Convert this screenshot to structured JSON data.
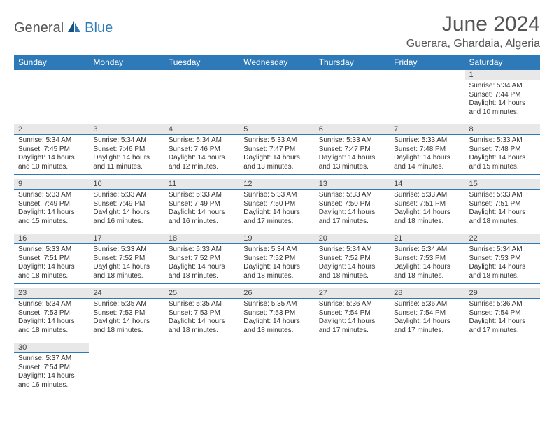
{
  "logo": {
    "part1": "General",
    "part2": "Blue"
  },
  "title": "June 2024",
  "location": "Guerara, Ghardaia, Algeria",
  "colors": {
    "header_bg": "#2e79b8",
    "header_text": "#ffffff",
    "daynum_bg": "#e8e8e8",
    "cell_border": "#2e79b8",
    "text": "#333333",
    "title_text": "#555555"
  },
  "day_headers": [
    "Sunday",
    "Monday",
    "Tuesday",
    "Wednesday",
    "Thursday",
    "Friday",
    "Saturday"
  ],
  "weeks": [
    [
      null,
      null,
      null,
      null,
      null,
      null,
      {
        "n": "1",
        "sunrise": "Sunrise: 5:34 AM",
        "sunset": "Sunset: 7:44 PM",
        "daylight": "Daylight: 14 hours and 10 minutes."
      }
    ],
    [
      {
        "n": "2",
        "sunrise": "Sunrise: 5:34 AM",
        "sunset": "Sunset: 7:45 PM",
        "daylight": "Daylight: 14 hours and 10 minutes."
      },
      {
        "n": "3",
        "sunrise": "Sunrise: 5:34 AM",
        "sunset": "Sunset: 7:46 PM",
        "daylight": "Daylight: 14 hours and 11 minutes."
      },
      {
        "n": "4",
        "sunrise": "Sunrise: 5:34 AM",
        "sunset": "Sunset: 7:46 PM",
        "daylight": "Daylight: 14 hours and 12 minutes."
      },
      {
        "n": "5",
        "sunrise": "Sunrise: 5:33 AM",
        "sunset": "Sunset: 7:47 PM",
        "daylight": "Daylight: 14 hours and 13 minutes."
      },
      {
        "n": "6",
        "sunrise": "Sunrise: 5:33 AM",
        "sunset": "Sunset: 7:47 PM",
        "daylight": "Daylight: 14 hours and 13 minutes."
      },
      {
        "n": "7",
        "sunrise": "Sunrise: 5:33 AM",
        "sunset": "Sunset: 7:48 PM",
        "daylight": "Daylight: 14 hours and 14 minutes."
      },
      {
        "n": "8",
        "sunrise": "Sunrise: 5:33 AM",
        "sunset": "Sunset: 7:48 PM",
        "daylight": "Daylight: 14 hours and 15 minutes."
      }
    ],
    [
      {
        "n": "9",
        "sunrise": "Sunrise: 5:33 AM",
        "sunset": "Sunset: 7:49 PM",
        "daylight": "Daylight: 14 hours and 15 minutes."
      },
      {
        "n": "10",
        "sunrise": "Sunrise: 5:33 AM",
        "sunset": "Sunset: 7:49 PM",
        "daylight": "Daylight: 14 hours and 16 minutes."
      },
      {
        "n": "11",
        "sunrise": "Sunrise: 5:33 AM",
        "sunset": "Sunset: 7:49 PM",
        "daylight": "Daylight: 14 hours and 16 minutes."
      },
      {
        "n": "12",
        "sunrise": "Sunrise: 5:33 AM",
        "sunset": "Sunset: 7:50 PM",
        "daylight": "Daylight: 14 hours and 17 minutes."
      },
      {
        "n": "13",
        "sunrise": "Sunrise: 5:33 AM",
        "sunset": "Sunset: 7:50 PM",
        "daylight": "Daylight: 14 hours and 17 minutes."
      },
      {
        "n": "14",
        "sunrise": "Sunrise: 5:33 AM",
        "sunset": "Sunset: 7:51 PM",
        "daylight": "Daylight: 14 hours and 18 minutes."
      },
      {
        "n": "15",
        "sunrise": "Sunrise: 5:33 AM",
        "sunset": "Sunset: 7:51 PM",
        "daylight": "Daylight: 14 hours and 18 minutes."
      }
    ],
    [
      {
        "n": "16",
        "sunrise": "Sunrise: 5:33 AM",
        "sunset": "Sunset: 7:51 PM",
        "daylight": "Daylight: 14 hours and 18 minutes."
      },
      {
        "n": "17",
        "sunrise": "Sunrise: 5:33 AM",
        "sunset": "Sunset: 7:52 PM",
        "daylight": "Daylight: 14 hours and 18 minutes."
      },
      {
        "n": "18",
        "sunrise": "Sunrise: 5:33 AM",
        "sunset": "Sunset: 7:52 PM",
        "daylight": "Daylight: 14 hours and 18 minutes."
      },
      {
        "n": "19",
        "sunrise": "Sunrise: 5:34 AM",
        "sunset": "Sunset: 7:52 PM",
        "daylight": "Daylight: 14 hours and 18 minutes."
      },
      {
        "n": "20",
        "sunrise": "Sunrise: 5:34 AM",
        "sunset": "Sunset: 7:52 PM",
        "daylight": "Daylight: 14 hours and 18 minutes."
      },
      {
        "n": "21",
        "sunrise": "Sunrise: 5:34 AM",
        "sunset": "Sunset: 7:53 PM",
        "daylight": "Daylight: 14 hours and 18 minutes."
      },
      {
        "n": "22",
        "sunrise": "Sunrise: 5:34 AM",
        "sunset": "Sunset: 7:53 PM",
        "daylight": "Daylight: 14 hours and 18 minutes."
      }
    ],
    [
      {
        "n": "23",
        "sunrise": "Sunrise: 5:34 AM",
        "sunset": "Sunset: 7:53 PM",
        "daylight": "Daylight: 14 hours and 18 minutes."
      },
      {
        "n": "24",
        "sunrise": "Sunrise: 5:35 AM",
        "sunset": "Sunset: 7:53 PM",
        "daylight": "Daylight: 14 hours and 18 minutes."
      },
      {
        "n": "25",
        "sunrise": "Sunrise: 5:35 AM",
        "sunset": "Sunset: 7:53 PM",
        "daylight": "Daylight: 14 hours and 18 minutes."
      },
      {
        "n": "26",
        "sunrise": "Sunrise: 5:35 AM",
        "sunset": "Sunset: 7:53 PM",
        "daylight": "Daylight: 14 hours and 18 minutes."
      },
      {
        "n": "27",
        "sunrise": "Sunrise: 5:36 AM",
        "sunset": "Sunset: 7:54 PM",
        "daylight": "Daylight: 14 hours and 17 minutes."
      },
      {
        "n": "28",
        "sunrise": "Sunrise: 5:36 AM",
        "sunset": "Sunset: 7:54 PM",
        "daylight": "Daylight: 14 hours and 17 minutes."
      },
      {
        "n": "29",
        "sunrise": "Sunrise: 5:36 AM",
        "sunset": "Sunset: 7:54 PM",
        "daylight": "Daylight: 14 hours and 17 minutes."
      }
    ],
    [
      {
        "n": "30",
        "sunrise": "Sunrise: 5:37 AM",
        "sunset": "Sunset: 7:54 PM",
        "daylight": "Daylight: 14 hours and 16 minutes."
      },
      null,
      null,
      null,
      null,
      null,
      null
    ]
  ]
}
